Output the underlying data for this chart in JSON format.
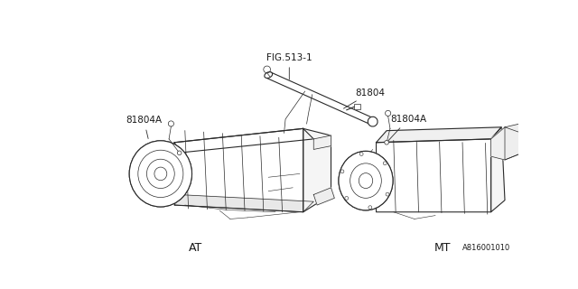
{
  "bg_color": "#ffffff",
  "line_color": "#2a2a2a",
  "text_color": "#1a1a1a",
  "fig_width": 6.4,
  "fig_height": 3.2,
  "dpi": 100,
  "labels": {
    "fig513_1": "FIG.513-1",
    "81804": "81804",
    "81804A_left": "81804A",
    "81804A_right": "81804A",
    "AT": "AT",
    "MT": "MT",
    "part_num": "A816001010"
  }
}
